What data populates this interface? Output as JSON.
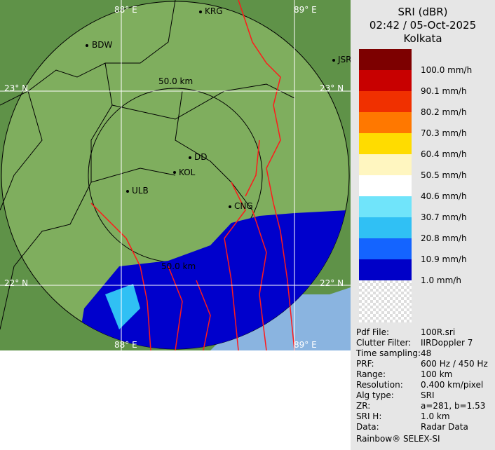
{
  "header": {
    "title": "SRI (dBR)",
    "datetime": "02:42 / 05-Oct-2025",
    "location": "Kolkata"
  },
  "legend": [
    {
      "label": "100.0 mm/h",
      "color": "#7d0000"
    },
    {
      "label": "90.1 mm/h",
      "color": "#c80000"
    },
    {
      "label": "80.2 mm/h",
      "color": "#f03000"
    },
    {
      "label": "70.3 mm/h",
      "color": "#ff7800"
    },
    {
      "label": "60.4 mm/h",
      "color": "#ffdc00"
    },
    {
      "label": "50.5 mm/h",
      "color": "#fff6c0"
    },
    {
      "label": "40.6 mm/h",
      "color": "#ffffff"
    },
    {
      "label": "30.7 mm/h",
      "color": "#70e4fa"
    },
    {
      "label": "20.8 mm/h",
      "color": "#30c0f4"
    },
    {
      "label": "10.9 mm/h",
      "color": "#1464ff"
    },
    {
      "label": "1.0 mm/h",
      "color": "#0000c8"
    }
  ],
  "info": [
    [
      "Pdf File:",
      "100R.sri"
    ],
    [
      "Clutter Filter:",
      "IIRDoppler 7"
    ],
    [
      "Time sampling:",
      "48"
    ],
    [
      "PRF:",
      "600 Hz / 450 Hz"
    ],
    [
      "Range:",
      "100 km"
    ],
    [
      "Resolution:",
      "0.400 km/pixel"
    ],
    [
      "Alg type:",
      "SRI"
    ],
    [
      "ZR:",
      "a=281, b=1.53"
    ],
    [
      "SRI H:",
      "1.0 km"
    ],
    [
      "Data:",
      "Radar Data"
    ]
  ],
  "footer": "Rainbow® SELEX-SI",
  "map": {
    "grid_labels": [
      "88° E",
      "89° E",
      "23° N",
      "23° N",
      "22° N",
      "22° N",
      "88° E",
      "89° E"
    ],
    "places": [
      "BDW",
      "KRG",
      "JSR",
      "DD",
      "KOL",
      "ULB",
      "CNG"
    ],
    "ranges": [
      "50.0 km",
      "50.0 km"
    ]
  }
}
